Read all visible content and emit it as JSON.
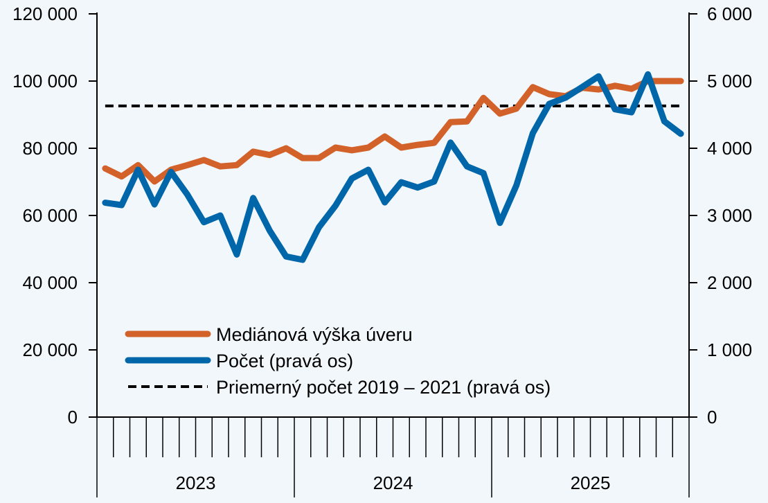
{
  "chart_data": {
    "type": "line",
    "title": "",
    "x": [
      "2023-01",
      "2023-02",
      "2023-03",
      "2023-04",
      "2023-05",
      "2023-06",
      "2023-07",
      "2023-08",
      "2023-09",
      "2023-10",
      "2023-11",
      "2023-12",
      "2024-01",
      "2024-02",
      "2024-03",
      "2024-04",
      "2024-05",
      "2024-06",
      "2024-07",
      "2024-08",
      "2024-09",
      "2024-10",
      "2024-11",
      "2024-12",
      "2025-01",
      "2025-02",
      "2025-03",
      "2025-04",
      "2025-05",
      "2025-06",
      "2025-07",
      "2025-08",
      "2025-09",
      "2025-10",
      "2025-11",
      "2025-12"
    ],
    "year_labels": [
      "2023",
      "2024",
      "2025"
    ],
    "left_axis": {
      "ylim": [
        0,
        120000
      ],
      "ticks": [
        "0",
        "20 000",
        "40 000",
        "60 000",
        "80 000",
        "100 000",
        "120 000"
      ]
    },
    "right_axis": {
      "ylim": [
        0,
        6000
      ],
      "ticks": [
        "0",
        "1 000",
        "2 000",
        "3 000",
        "4 000",
        "5 000",
        "6 000"
      ]
    },
    "series": [
      {
        "name": "Mediánová výška úveru",
        "axis": "left",
        "color": "#d2622a",
        "style": "solid",
        "values": [
          74000,
          71600,
          75000,
          70100,
          73600,
          75000,
          76500,
          74600,
          75000,
          79000,
          78000,
          80000,
          77100,
          77100,
          80200,
          79400,
          80200,
          83500,
          80200,
          81000,
          81600,
          87800,
          88000,
          95000,
          90300,
          91800,
          98200,
          96100,
          95500,
          98000,
          97500,
          98600,
          97700,
          100000,
          100000,
          100000
        ]
      },
      {
        "name": "Počet (pravá os)",
        "axis": "right",
        "color": "#0066aa",
        "style": "solid",
        "values": [
          3190,
          3155,
          3680,
          3165,
          3650,
          3310,
          2900,
          3000,
          2420,
          3260,
          2775,
          2390,
          2340,
          2825,
          3145,
          3550,
          3680,
          3195,
          3495,
          3415,
          3505,
          4085,
          3730,
          3630,
          2890,
          3445,
          4225,
          4660,
          4755,
          4910,
          5070,
          4580,
          4535,
          5100,
          4400,
          4215
        ]
      },
      {
        "name": "Priemerný počet 2019 – 2021 (pravá os)",
        "axis": "right",
        "color": "#000000",
        "style": "dashed",
        "values": [
          4630,
          4630,
          4630,
          4630,
          4630,
          4630,
          4630,
          4630,
          4630,
          4630,
          4630,
          4630,
          4630,
          4630,
          4630,
          4630,
          4630,
          4630,
          4630,
          4630,
          4630,
          4630,
          4630,
          4630,
          4630,
          4630,
          4630,
          4630,
          4630,
          4630,
          4630,
          4630,
          4630,
          4630,
          4630,
          4630
        ]
      }
    ],
    "grid": false,
    "legend_placement": "bottom-left"
  }
}
